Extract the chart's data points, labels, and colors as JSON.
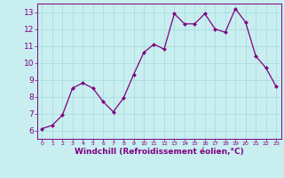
{
  "x": [
    0,
    1,
    2,
    3,
    4,
    5,
    6,
    7,
    8,
    9,
    10,
    11,
    12,
    13,
    14,
    15,
    16,
    17,
    18,
    19,
    20,
    21,
    22,
    23
  ],
  "y": [
    6.1,
    6.3,
    6.9,
    8.5,
    8.8,
    8.5,
    7.7,
    7.1,
    7.9,
    9.3,
    10.6,
    11.1,
    10.8,
    12.9,
    12.3,
    12.3,
    12.9,
    12.0,
    11.8,
    13.2,
    12.4,
    10.4,
    9.7,
    8.6
  ],
  "line_color": "#800080",
  "marker": "D",
  "marker_size": 2.0,
  "bg_color": "#c8eef0",
  "grid_color": "#aadddd",
  "xlabel": "Windchill (Refroidissement éolien,°C)",
  "xlabel_color": "#800080",
  "tick_color": "#800080",
  "spine_color": "#800080",
  "ylim": [
    5.5,
    13.5
  ],
  "xlim": [
    -0.5,
    23.5
  ],
  "yticks": [
    6,
    7,
    8,
    9,
    10,
    11,
    12,
    13
  ],
  "xticks": [
    0,
    1,
    2,
    3,
    4,
    5,
    6,
    7,
    8,
    9,
    10,
    11,
    12,
    13,
    14,
    15,
    16,
    17,
    18,
    19,
    20,
    21,
    22,
    23
  ],
  "ytick_fontsize": 6.5,
  "xtick_fontsize": 4.5,
  "xlabel_fontsize": 6.5,
  "linewidth": 0.9
}
